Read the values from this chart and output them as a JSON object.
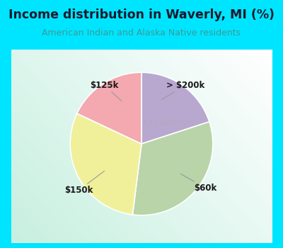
{
  "title": "Income distribution in Waverly, MI (%)",
  "subtitle": "American Indian and Alaska Native residents",
  "title_color": "#1a1a2e",
  "subtitle_color": "#3a9a9a",
  "background_color": "#00e5ff",
  "slices": [
    {
      "label": "> $200k",
      "value": 20,
      "color": "#b8a8d0"
    },
    {
      "label": "$60k",
      "value": 32,
      "color": "#b8d4a8"
    },
    {
      "label": "$150k",
      "value": 30,
      "color": "#f0f09a"
    },
    {
      "label": "$125k",
      "value": 18,
      "color": "#f4a8b0"
    }
  ],
  "figsize": [
    4.0,
    3.5
  ],
  "dpi": 100
}
